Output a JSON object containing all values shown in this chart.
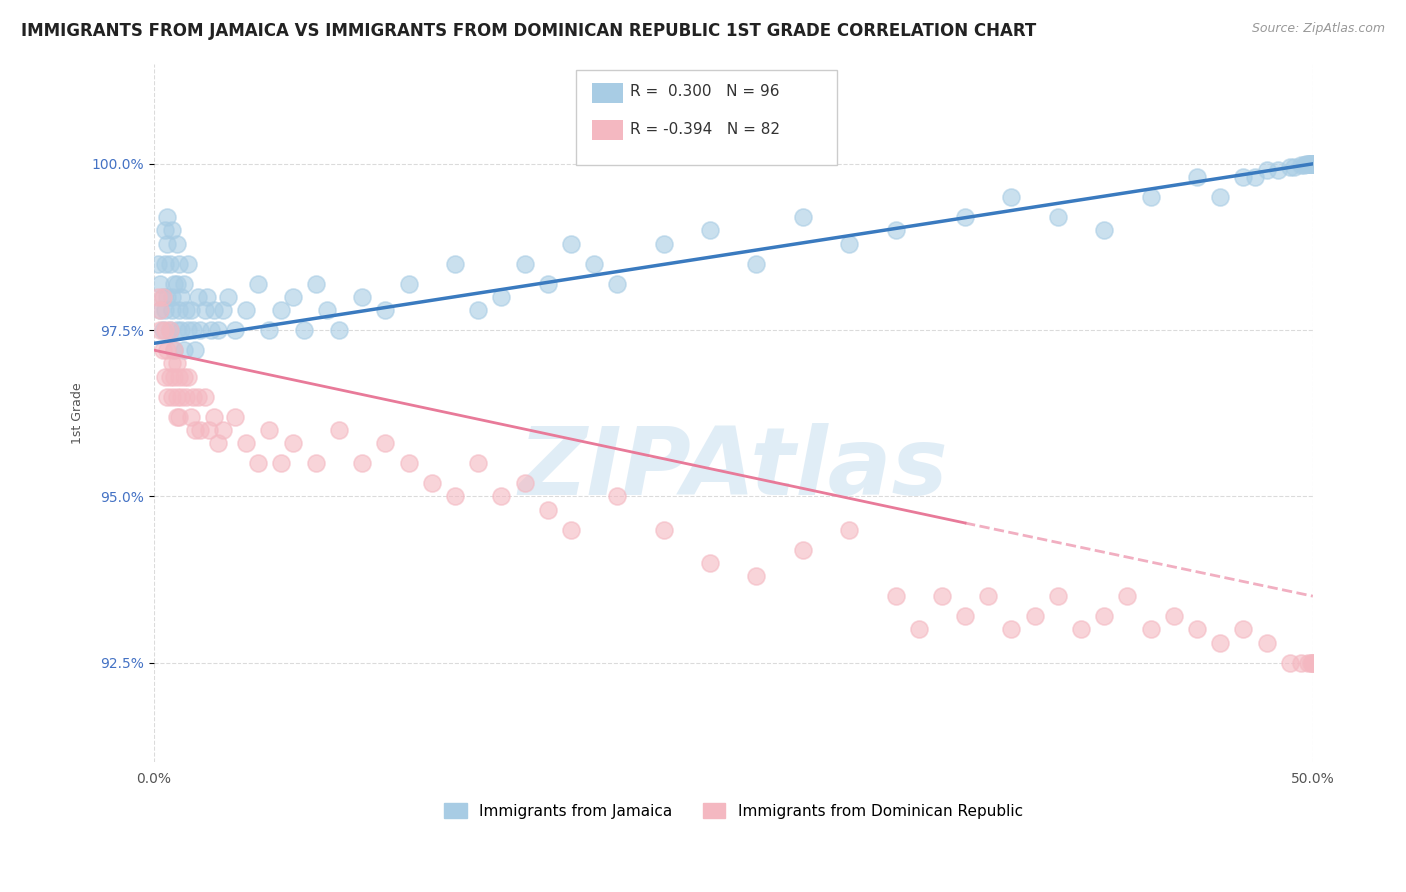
{
  "title": "IMMIGRANTS FROM JAMAICA VS IMMIGRANTS FROM DOMINICAN REPUBLIC 1ST GRADE CORRELATION CHART",
  "source_text": "Source: ZipAtlas.com",
  "ylabel": "1st Grade",
  "x_label_bottom_left": "0.0%",
  "x_label_bottom_right": "50.0%",
  "y_ticks": [
    92.5,
    95.0,
    97.5,
    100.0
  ],
  "y_tick_labels": [
    "92.5%",
    "95.0%",
    "97.5%",
    "100.0%"
  ],
  "xlim": [
    0.0,
    50.0
  ],
  "ylim": [
    91.0,
    101.5
  ],
  "legend_entries": [
    "Immigrants from Jamaica",
    "Immigrants from Dominican Republic"
  ],
  "R_jamaica": 0.3,
  "N_jamaica": 96,
  "R_dr": -0.394,
  "N_dr": 82,
  "color_jamaica": "#a8cce4",
  "color_dr": "#f4b8c1",
  "color_jamaica_line": "#3a7abf",
  "color_dr_line": "#e87a99",
  "background_color": "#ffffff",
  "watermark_color": "#c8dff0",
  "title_fontsize": 12,
  "axis_label_fontsize": 9,
  "tick_label_fontsize": 10,
  "jamaica_x": [
    0.2,
    0.3,
    0.3,
    0.4,
    0.4,
    0.5,
    0.5,
    0.5,
    0.6,
    0.6,
    0.6,
    0.7,
    0.7,
    0.8,
    0.8,
    0.8,
    0.9,
    0.9,
    1.0,
    1.0,
    1.0,
    1.1,
    1.1,
    1.2,
    1.2,
    1.3,
    1.3,
    1.4,
    1.5,
    1.5,
    1.6,
    1.7,
    1.8,
    1.9,
    2.0,
    2.2,
    2.3,
    2.5,
    2.6,
    2.8,
    3.0,
    3.2,
    3.5,
    4.0,
    4.5,
    5.0,
    5.5,
    6.0,
    6.5,
    7.0,
    7.5,
    8.0,
    9.0,
    10.0,
    11.0,
    13.0,
    14.0,
    15.0,
    16.0,
    17.0,
    18.0,
    19.0,
    20.0,
    22.0,
    24.0,
    26.0,
    28.0,
    30.0,
    32.0,
    35.0,
    37.0,
    39.0,
    41.0,
    43.0,
    45.0,
    46.0,
    47.0,
    47.5,
    48.0,
    48.5,
    49.0,
    49.2,
    49.5,
    49.6,
    49.7,
    49.8,
    49.85,
    49.9,
    49.92,
    49.95,
    49.97,
    49.98,
    49.99,
    50.0,
    50.0,
    50.0
  ],
  "jamaica_y": [
    98.5,
    97.8,
    98.2,
    98.0,
    97.5,
    99.0,
    98.5,
    97.8,
    99.2,
    98.8,
    98.0,
    98.5,
    97.5,
    98.0,
    97.8,
    99.0,
    98.2,
    97.2,
    98.8,
    98.2,
    97.5,
    98.5,
    97.8,
    97.5,
    98.0,
    98.2,
    97.2,
    97.8,
    98.5,
    97.5,
    97.8,
    97.5,
    97.2,
    98.0,
    97.5,
    97.8,
    98.0,
    97.5,
    97.8,
    97.5,
    97.8,
    98.0,
    97.5,
    97.8,
    98.2,
    97.5,
    97.8,
    98.0,
    97.5,
    98.2,
    97.8,
    97.5,
    98.0,
    97.8,
    98.2,
    98.5,
    97.8,
    98.0,
    98.5,
    98.2,
    98.8,
    98.5,
    98.2,
    98.8,
    99.0,
    98.5,
    99.2,
    98.8,
    99.0,
    99.2,
    99.5,
    99.2,
    99.0,
    99.5,
    99.8,
    99.5,
    99.8,
    99.8,
    99.9,
    99.9,
    99.95,
    99.95,
    99.98,
    99.98,
    100.0,
    100.0,
    100.0,
    100.0,
    100.0,
    100.0,
    100.0,
    100.0,
    100.0,
    100.0,
    100.0,
    100.0
  ],
  "dr_x": [
    0.2,
    0.3,
    0.3,
    0.4,
    0.4,
    0.5,
    0.5,
    0.6,
    0.6,
    0.7,
    0.7,
    0.8,
    0.8,
    0.9,
    0.9,
    1.0,
    1.0,
    1.0,
    1.1,
    1.1,
    1.2,
    1.3,
    1.4,
    1.5,
    1.6,
    1.7,
    1.8,
    1.9,
    2.0,
    2.2,
    2.4,
    2.6,
    2.8,
    3.0,
    3.5,
    4.0,
    4.5,
    5.0,
    5.5,
    6.0,
    7.0,
    8.0,
    9.0,
    10.0,
    11.0,
    12.0,
    13.0,
    14.0,
    15.0,
    16.0,
    17.0,
    18.0,
    20.0,
    22.0,
    24.0,
    26.0,
    28.0,
    30.0,
    32.0,
    33.0,
    34.0,
    35.0,
    36.0,
    37.0,
    38.0,
    39.0,
    40.0,
    41.0,
    42.0,
    43.0,
    44.0,
    45.0,
    46.0,
    47.0,
    48.0,
    49.0,
    49.5,
    49.8,
    49.9,
    50.0,
    50.0,
    50.0
  ],
  "dr_y": [
    98.0,
    97.8,
    97.5,
    97.2,
    98.0,
    97.5,
    96.8,
    97.2,
    96.5,
    97.5,
    96.8,
    97.0,
    96.5,
    97.2,
    96.8,
    97.0,
    96.5,
    96.2,
    96.8,
    96.2,
    96.5,
    96.8,
    96.5,
    96.8,
    96.2,
    96.5,
    96.0,
    96.5,
    96.0,
    96.5,
    96.0,
    96.2,
    95.8,
    96.0,
    96.2,
    95.8,
    95.5,
    96.0,
    95.5,
    95.8,
    95.5,
    96.0,
    95.5,
    95.8,
    95.5,
    95.2,
    95.0,
    95.5,
    95.0,
    95.2,
    94.8,
    94.5,
    95.0,
    94.5,
    94.0,
    93.8,
    94.2,
    94.5,
    93.5,
    93.0,
    93.5,
    93.2,
    93.5,
    93.0,
    93.2,
    93.5,
    93.0,
    93.2,
    93.5,
    93.0,
    93.2,
    93.0,
    92.8,
    93.0,
    92.8,
    92.5,
    92.5,
    92.5,
    92.5,
    92.5,
    92.5,
    92.5
  ],
  "jam_line_x0": 0.0,
  "jam_line_y0": 97.3,
  "jam_line_x1": 50.0,
  "jam_line_y1": 100.0,
  "dr_line_x0": 0.0,
  "dr_line_y0": 97.2,
  "dr_line_x1": 35.0,
  "dr_line_y1": 94.6,
  "dr_dash_x0": 35.0,
  "dr_dash_y0": 94.6,
  "dr_dash_x1": 50.0,
  "dr_dash_y1": 93.5
}
